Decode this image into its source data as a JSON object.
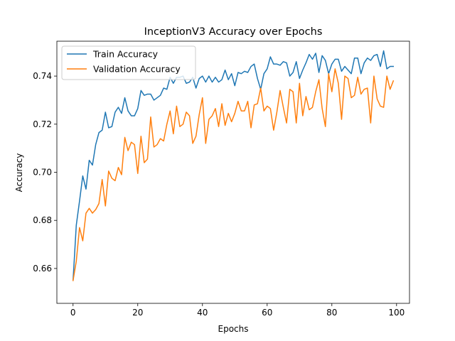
{
  "chart_data": {
    "type": "line",
    "title": "InceptionV3 Accuracy over Epochs",
    "xlabel": "Epochs",
    "ylabel": "Accuracy",
    "xlim": [
      -5,
      104
    ],
    "ylim": [
      0.6455,
      0.7545
    ],
    "xticks": [
      0,
      20,
      40,
      60,
      80,
      100
    ],
    "yticks": [
      0.66,
      0.68,
      0.7,
      0.72,
      0.74
    ],
    "ytick_labels": [
      "0.66",
      "0.68",
      "0.70",
      "0.72",
      "0.74"
    ],
    "grid": false,
    "legend_position": "top-left",
    "series": [
      {
        "name": "Train Accuracy",
        "color": "#1f77b4",
        "values": [
          0.655,
          0.678,
          0.688,
          0.6985,
          0.693,
          0.705,
          0.703,
          0.7115,
          0.7165,
          0.7175,
          0.725,
          0.7185,
          0.719,
          0.725,
          0.727,
          0.7245,
          0.731,
          0.7255,
          0.7235,
          0.7235,
          0.7265,
          0.734,
          0.732,
          0.7325,
          0.7325,
          0.73,
          0.731,
          0.732,
          0.735,
          0.7345,
          0.7395,
          0.737,
          0.7395,
          0.7395,
          0.74,
          0.737,
          0.7375,
          0.7395,
          0.735,
          0.739,
          0.74,
          0.7375,
          0.74,
          0.7375,
          0.7395,
          0.7375,
          0.7385,
          0.7425,
          0.7385,
          0.741,
          0.736,
          0.7415,
          0.741,
          0.742,
          0.7415,
          0.744,
          0.745,
          0.739,
          0.7345,
          0.741,
          0.743,
          0.748,
          0.745,
          0.745,
          0.7445,
          0.746,
          0.7455,
          0.74,
          0.7415,
          0.746,
          0.739,
          0.7425,
          0.7455,
          0.749,
          0.747,
          0.7495,
          0.7415,
          0.7485,
          0.7465,
          0.741,
          0.745,
          0.747,
          0.747,
          0.742,
          0.744,
          0.7425,
          0.741,
          0.7475,
          0.7475,
          0.741,
          0.7455,
          0.7475,
          0.7465,
          0.7485,
          0.749,
          0.744,
          0.7505,
          0.743,
          0.744,
          0.744
        ]
      },
      {
        "name": "Validation Accuracy",
        "color": "#ff7f0e",
        "values": [
          0.655,
          0.663,
          0.677,
          0.6715,
          0.683,
          0.685,
          0.683,
          0.6845,
          0.687,
          0.697,
          0.686,
          0.7005,
          0.6975,
          0.6965,
          0.702,
          0.699,
          0.7145,
          0.709,
          0.7125,
          0.7115,
          0.6995,
          0.715,
          0.704,
          0.7055,
          0.723,
          0.7105,
          0.7115,
          0.714,
          0.713,
          0.72,
          0.7255,
          0.716,
          0.7275,
          0.719,
          0.72,
          0.725,
          0.7235,
          0.712,
          0.715,
          0.724,
          0.731,
          0.712,
          0.722,
          0.7235,
          0.7265,
          0.719,
          0.7285,
          0.7195,
          0.7245,
          0.721,
          0.7245,
          0.7295,
          0.7255,
          0.7255,
          0.7295,
          0.7185,
          0.728,
          0.7285,
          0.735,
          0.7255,
          0.7275,
          0.7265,
          0.7175,
          0.725,
          0.734,
          0.727,
          0.7205,
          0.7345,
          0.7335,
          0.7205,
          0.737,
          0.7235,
          0.7315,
          0.726,
          0.727,
          0.7335,
          0.7385,
          0.7265,
          0.719,
          0.741,
          0.7335,
          0.743,
          0.737,
          0.722,
          0.74,
          0.739,
          0.731,
          0.732,
          0.7395,
          0.7325,
          0.7345,
          0.735,
          0.7205,
          0.74,
          0.7305,
          0.7275,
          0.727,
          0.74,
          0.7345,
          0.738
        ]
      }
    ]
  }
}
